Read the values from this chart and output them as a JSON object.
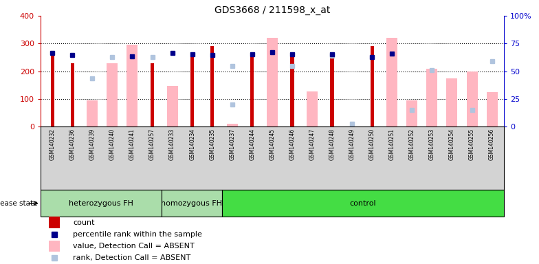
{
  "title": "GDS3668 / 211598_x_at",
  "samples": [
    "GSM140232",
    "GSM140236",
    "GSM140239",
    "GSM140240",
    "GSM140241",
    "GSM140257",
    "GSM140233",
    "GSM140234",
    "GSM140235",
    "GSM140237",
    "GSM140244",
    "GSM140245",
    "GSM140246",
    "GSM140247",
    "GSM140248",
    "GSM140249",
    "GSM140250",
    "GSM140251",
    "GSM140252",
    "GSM140253",
    "GSM140254",
    "GSM140255",
    "GSM140256"
  ],
  "count_values": [
    260,
    228,
    0,
    0,
    0,
    230,
    0,
    260,
    290,
    0,
    260,
    0,
    260,
    0,
    260,
    0,
    290,
    0,
    0,
    0,
    0,
    0,
    0
  ],
  "value_absent": [
    0,
    0,
    95,
    228,
    295,
    0,
    148,
    0,
    0,
    10,
    0,
    320,
    0,
    128,
    0,
    0,
    0,
    320,
    95,
    210,
    175,
    200,
    125
  ],
  "rank_absent_val": [
    0,
    0,
    175,
    0,
    0,
    0,
    0,
    0,
    0,
    80,
    0,
    0,
    0,
    0,
    0,
    10,
    0,
    0,
    0,
    0,
    0,
    0,
    0
  ],
  "percentile_rank": [
    265,
    258,
    0,
    0,
    253,
    0,
    265,
    260,
    258,
    0,
    262,
    268,
    262,
    0,
    262,
    0,
    252,
    263,
    0,
    0,
    0,
    0,
    0
  ],
  "rank_absent_sq": [
    0,
    0,
    0,
    63,
    0,
    63,
    0,
    0,
    0,
    55,
    0,
    0,
    55,
    0,
    64,
    0,
    0,
    0,
    15,
    51,
    0,
    15,
    59
  ],
  "disease_groups": [
    {
      "label": "heterozygous FH",
      "start": 0,
      "end": 6
    },
    {
      "label": "homozygous FH",
      "start": 6,
      "end": 9
    },
    {
      "label": "control",
      "start": 9,
      "end": 23
    }
  ],
  "ylim_left": [
    0,
    400
  ],
  "ylim_right": [
    0,
    100
  ],
  "yticks_left": [
    0,
    100,
    200,
    300,
    400
  ],
  "yticks_right": [
    0,
    25,
    50,
    75,
    100
  ],
  "count_color": "#cc0000",
  "value_absent_color": "#ffb6c1",
  "rank_absent_color": "#b0c4de",
  "percentile_color": "#00008b",
  "left_axis_color": "#cc0000",
  "right_axis_color": "#0000cd",
  "group_colors": [
    "#aaddaa",
    "#aaddaa",
    "#44dd44"
  ],
  "bg_white": "#ffffff",
  "bg_gray": "#d3d3d3"
}
